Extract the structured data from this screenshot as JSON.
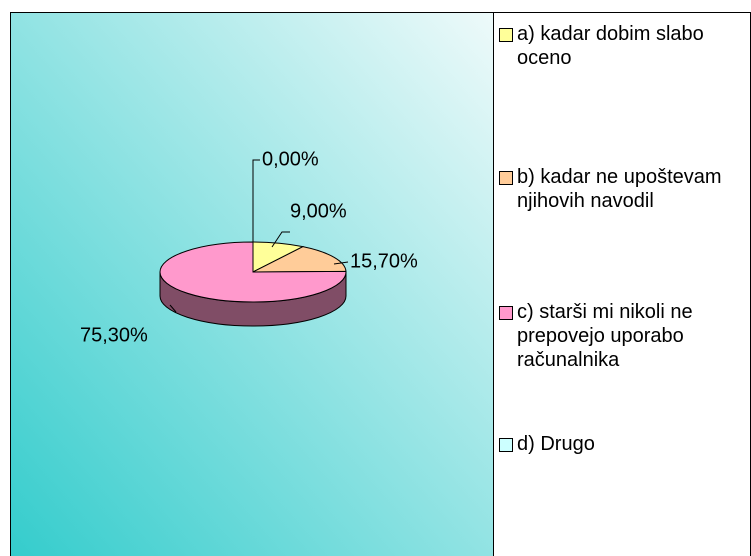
{
  "chart_data": {
    "type": "pie",
    "categories": [
      "a) kadar dobim slabo oceno",
      "b) kadar ne upoštevam njihovih navodil",
      "c) starši mi nikoli ne prepovejo uporabo računalnika",
      "d) Drugo"
    ],
    "values": [
      9,
      15.7,
      75.3,
      0
    ],
    "value_labels": [
      "9,00%",
      "15,70%",
      "75,30%",
      "0,00%"
    ],
    "colors": [
      "#ffff99",
      "#ffcc99",
      "#ff99cc",
      "#ccffff"
    ]
  }
}
